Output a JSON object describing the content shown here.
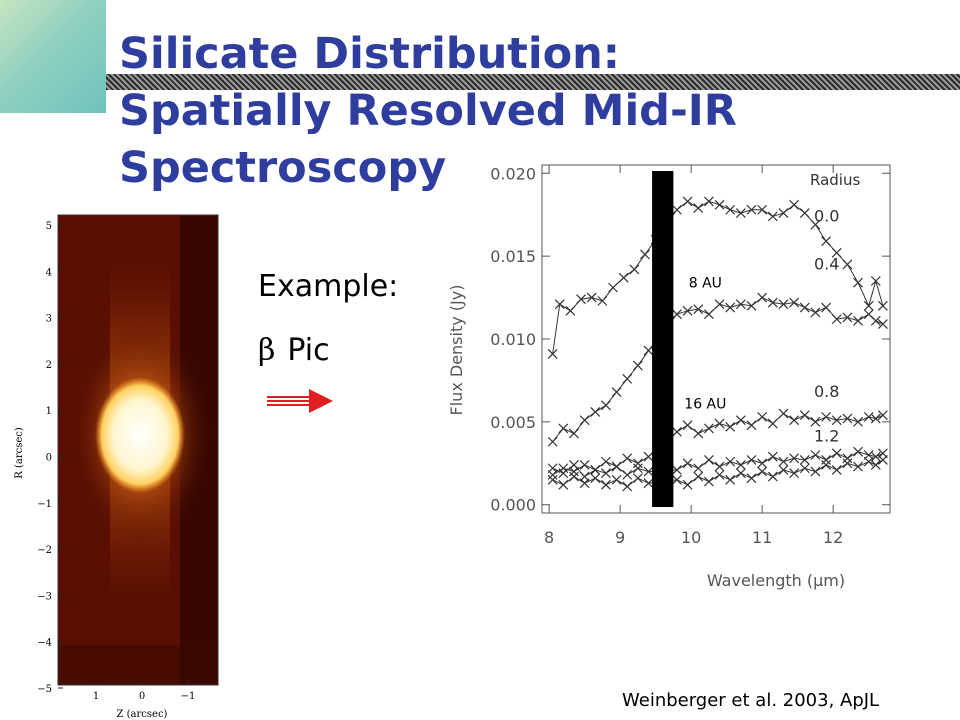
{
  "slide": {
    "title_line1": "Silicate Distribution:",
    "title_line2": "Spatially Resolved Mid-IR",
    "title_line3": "Spectroscopy",
    "example_label": "Example:",
    "target_symbol": "β",
    "target_name": "Pic",
    "citation": "Weinberger et al. 2003, ApJL",
    "title_color": "#2e3d9e",
    "arrow_color": "#e02020"
  },
  "image": {
    "ylabel": "R (arcsec)",
    "xlabel": "Z (arcsec)",
    "yticks": [
      "5",
      "4",
      "3",
      "2",
      "1",
      "0",
      "−1",
      "−2",
      "−3",
      "−4",
      "−5"
    ],
    "xticks": [
      "1",
      "0",
      "−1"
    ]
  },
  "chart_data": {
    "type": "line",
    "xlabel": "Wavelength (μm)",
    "ylabel": "Flux Density (Jy)",
    "xlim": [
      7.9,
      12.8
    ],
    "ylim": [
      -0.0005,
      0.0205
    ],
    "xticks": [
      8,
      9,
      10,
      11,
      12
    ],
    "yticks": [
      0.0,
      0.005,
      0.01,
      0.015,
      0.02
    ],
    "ytick_labels": [
      "0.000",
      "0.005",
      "0.010",
      "0.015",
      "0.020"
    ],
    "legend_title": "Radius",
    "excluded_band": [
      9.45,
      9.75
    ],
    "annotations": [
      {
        "text": "8 AU",
        "x": 10.2,
        "y": 0.0131
      },
      {
        "text": "16 AU",
        "x": 10.2,
        "y": 0.0058
      }
    ],
    "series": [
      {
        "name": "0.0",
        "x": [
          8.05,
          8.15,
          8.3,
          8.45,
          8.6,
          8.75,
          8.9,
          9.05,
          9.2,
          9.35,
          9.5,
          9.8,
          9.95,
          10.1,
          10.25,
          10.4,
          10.55,
          10.7,
          10.85,
          11.0,
          11.15,
          11.3,
          11.45,
          11.6,
          11.75,
          11.9,
          12.05,
          12.2,
          12.35,
          12.5,
          12.6,
          12.7
        ],
        "y": [
          0.0091,
          0.0121,
          0.0117,
          0.0124,
          0.0125,
          0.0123,
          0.0131,
          0.0137,
          0.0142,
          0.0151,
          0.016,
          0.0178,
          0.0183,
          0.0179,
          0.0183,
          0.0181,
          0.0178,
          0.0176,
          0.0178,
          0.0178,
          0.0174,
          0.0176,
          0.0181,
          0.0176,
          0.0169,
          0.0159,
          0.0152,
          0.0145,
          0.0134,
          0.012,
          0.0135,
          0.012
        ]
      },
      {
        "name": "0.4",
        "x": [
          8.05,
          8.2,
          8.35,
          8.5,
          8.65,
          8.8,
          8.95,
          9.1,
          9.25,
          9.4,
          9.8,
          9.95,
          10.1,
          10.25,
          10.4,
          10.55,
          10.7,
          10.85,
          11.0,
          11.15,
          11.3,
          11.45,
          11.6,
          11.75,
          11.9,
          12.05,
          12.2,
          12.35,
          12.5,
          12.6,
          12.7
        ],
        "y": [
          0.0038,
          0.0046,
          0.0043,
          0.0051,
          0.0056,
          0.006,
          0.0068,
          0.0076,
          0.0084,
          0.0093,
          0.0115,
          0.0117,
          0.0118,
          0.0115,
          0.0121,
          0.0119,
          0.0121,
          0.012,
          0.0125,
          0.0122,
          0.0121,
          0.0122,
          0.0119,
          0.0116,
          0.0119,
          0.0112,
          0.0113,
          0.0111,
          0.0115,
          0.0111,
          0.0109
        ]
      },
      {
        "name": "0.8",
        "x": [
          8.05,
          8.2,
          8.35,
          8.5,
          8.65,
          8.8,
          8.95,
          9.1,
          9.25,
          9.4,
          9.8,
          9.95,
          10.1,
          10.25,
          10.4,
          10.55,
          10.7,
          10.85,
          11.0,
          11.15,
          11.3,
          11.45,
          11.6,
          11.75,
          11.9,
          12.05,
          12.2,
          12.35,
          12.5,
          12.6,
          12.7
        ],
        "y": [
          0.0018,
          0.0022,
          0.002,
          0.0024,
          0.0021,
          0.0026,
          0.0023,
          0.0028,
          0.0025,
          0.0029,
          0.0044,
          0.0048,
          0.0043,
          0.0046,
          0.0049,
          0.0047,
          0.0051,
          0.0048,
          0.0053,
          0.0049,
          0.0055,
          0.0051,
          0.0054,
          0.005,
          0.0053,
          0.0051,
          0.0052,
          0.005,
          0.0053,
          0.0052,
          0.0054
        ]
      },
      {
        "name": "1.2",
        "x": [
          8.05,
          8.2,
          8.35,
          8.5,
          8.65,
          8.8,
          8.95,
          9.1,
          9.25,
          9.4,
          9.8,
          9.95,
          10.1,
          10.25,
          10.4,
          10.55,
          10.7,
          10.85,
          11.0,
          11.15,
          11.3,
          11.45,
          11.6,
          11.75,
          11.9,
          12.05,
          12.2,
          12.35,
          12.5,
          12.6,
          12.7
        ],
        "y": [
          0.0022,
          0.0019,
          0.0024,
          0.0017,
          0.0021,
          0.0019,
          0.0023,
          0.0018,
          0.0022,
          0.002,
          0.0021,
          0.0025,
          0.0022,
          0.0027,
          0.0023,
          0.0026,
          0.0024,
          0.0027,
          0.0025,
          0.0029,
          0.0026,
          0.0028,
          0.0027,
          0.003,
          0.0027,
          0.0031,
          0.0028,
          0.0032,
          0.003,
          0.0029,
          0.0031
        ]
      },
      {
        "name": "",
        "x": [
          8.05,
          8.2,
          8.35,
          8.5,
          8.65,
          8.8,
          8.95,
          9.1,
          9.25,
          9.4,
          9.8,
          9.95,
          10.1,
          10.25,
          10.4,
          10.55,
          10.7,
          10.85,
          11.0,
          11.15,
          11.3,
          11.45,
          11.6,
          11.75,
          11.9,
          12.05,
          12.2,
          12.35,
          12.5,
          12.6,
          12.7
        ],
        "y": [
          0.0015,
          0.0012,
          0.0017,
          0.0013,
          0.0016,
          0.0012,
          0.0015,
          0.0011,
          0.0016,
          0.0013,
          0.0015,
          0.0012,
          0.0017,
          0.0014,
          0.0018,
          0.0015,
          0.0019,
          0.0016,
          0.002,
          0.0017,
          0.0021,
          0.0019,
          0.0022,
          0.002,
          0.0024,
          0.0021,
          0.0025,
          0.0023,
          0.0026,
          0.0024,
          0.0027
        ]
      }
    ]
  }
}
